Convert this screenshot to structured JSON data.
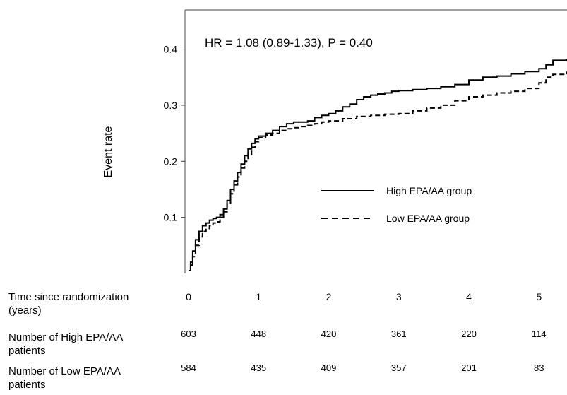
{
  "chart_data": {
    "type": "line",
    "annotation": "HR = 1.08 (0.89-1.33), P = 0.40",
    "ylabel": "Event rate",
    "xlabel_lines": [
      "Time since randomization",
      "(years)"
    ],
    "xlim": [
      -0.05,
      5.4
    ],
    "ylim": [
      0,
      0.47
    ],
    "x_ticks": [
      0,
      1,
      2,
      3,
      4,
      5
    ],
    "y_ticks": [
      0.1,
      0.2,
      0.3,
      0.4
    ],
    "legend_position": "center-right",
    "series": [
      {
        "name": "High EPA/AA group",
        "dash": "solid",
        "x": [
          0,
          0.03,
          0.06,
          0.1,
          0.15,
          0.2,
          0.25,
          0.3,
          0.35,
          0.4,
          0.45,
          0.5,
          0.55,
          0.6,
          0.65,
          0.7,
          0.75,
          0.8,
          0.85,
          0.9,
          0.95,
          1.0,
          1.1,
          1.2,
          1.3,
          1.4,
          1.5,
          1.6,
          1.7,
          1.8,
          1.9,
          2.0,
          2.1,
          2.2,
          2.3,
          2.4,
          2.5,
          2.6,
          2.7,
          2.8,
          2.9,
          3.0,
          3.2,
          3.4,
          3.6,
          3.8,
          4.0,
          4.2,
          4.4,
          4.6,
          4.8,
          5.0,
          5.1,
          5.2,
          5.4
        ],
        "y": [
          0.005,
          0.02,
          0.04,
          0.06,
          0.075,
          0.085,
          0.09,
          0.095,
          0.098,
          0.1,
          0.105,
          0.115,
          0.13,
          0.15,
          0.165,
          0.18,
          0.195,
          0.21,
          0.222,
          0.232,
          0.24,
          0.245,
          0.25,
          0.255,
          0.262,
          0.267,
          0.27,
          0.27,
          0.272,
          0.278,
          0.282,
          0.285,
          0.29,
          0.297,
          0.302,
          0.31,
          0.315,
          0.318,
          0.32,
          0.322,
          0.325,
          0.326,
          0.328,
          0.33,
          0.333,
          0.337,
          0.345,
          0.35,
          0.352,
          0.356,
          0.36,
          0.365,
          0.372,
          0.38,
          0.383
        ]
      },
      {
        "name": "Low EPA/AA group",
        "dash": "dashed",
        "x": [
          0,
          0.03,
          0.06,
          0.1,
          0.15,
          0.2,
          0.25,
          0.3,
          0.35,
          0.4,
          0.45,
          0.5,
          0.55,
          0.6,
          0.65,
          0.7,
          0.75,
          0.8,
          0.85,
          0.9,
          0.95,
          1.0,
          1.1,
          1.2,
          1.3,
          1.4,
          1.5,
          1.6,
          1.7,
          1.8,
          1.9,
          2.0,
          2.2,
          2.4,
          2.6,
          2.8,
          3.0,
          3.2,
          3.4,
          3.6,
          3.8,
          4.0,
          4.2,
          4.4,
          4.6,
          4.8,
          5.0,
          5.1,
          5.2,
          5.4
        ],
        "y": [
          0.005,
          0.015,
          0.03,
          0.05,
          0.065,
          0.075,
          0.08,
          0.085,
          0.09,
          0.092,
          0.1,
          0.11,
          0.125,
          0.142,
          0.158,
          0.172,
          0.188,
          0.2,
          0.212,
          0.225,
          0.235,
          0.242,
          0.247,
          0.25,
          0.255,
          0.258,
          0.26,
          0.262,
          0.264,
          0.267,
          0.27,
          0.272,
          0.276,
          0.28,
          0.282,
          0.284,
          0.285,
          0.29,
          0.295,
          0.3,
          0.308,
          0.315,
          0.318,
          0.322,
          0.325,
          0.33,
          0.34,
          0.35,
          0.355,
          0.36
        ]
      }
    ],
    "risk_table": {
      "times": [
        "0",
        "1",
        "2",
        "3",
        "4",
        "5"
      ],
      "rows": [
        {
          "label_lines": [
            "Number of High EPA/AA",
            "patients"
          ],
          "values": [
            "603",
            "448",
            "420",
            "361",
            "220",
            "114"
          ]
        },
        {
          "label_lines": [
            "Number of Low EPA/AA",
            "patients"
          ],
          "values": [
            "584",
            "435",
            "409",
            "357",
            "201",
            "83"
          ]
        }
      ]
    }
  }
}
